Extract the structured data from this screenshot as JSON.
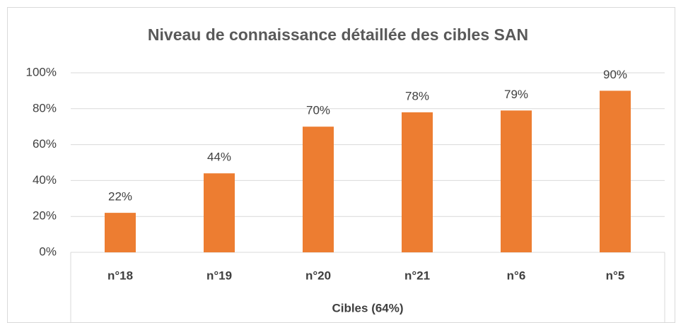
{
  "chart_data": {
    "type": "bar",
    "title": "Niveau de connaissance détaillée des cibles SAN",
    "x_label": "Cibles (64%)",
    "categories": [
      "n°18",
      "n°19",
      "n°20",
      "n°21",
      "n°6",
      "n°5"
    ],
    "values": [
      22,
      44,
      70,
      78,
      79,
      90
    ],
    "value_labels": [
      "22%",
      "44%",
      "70%",
      "78%",
      "79%",
      "90%"
    ],
    "color": "#ed7d31",
    "ylim": [
      0,
      100
    ],
    "yticks": [
      {
        "value": 0,
        "label": "0%"
      },
      {
        "value": 20,
        "label": "20%"
      },
      {
        "value": 40,
        "label": "40%"
      },
      {
        "value": 60,
        "label": "60%"
      },
      {
        "value": 80,
        "label": "80%"
      },
      {
        "value": 100,
        "label": "100%"
      }
    ],
    "grid": true
  }
}
